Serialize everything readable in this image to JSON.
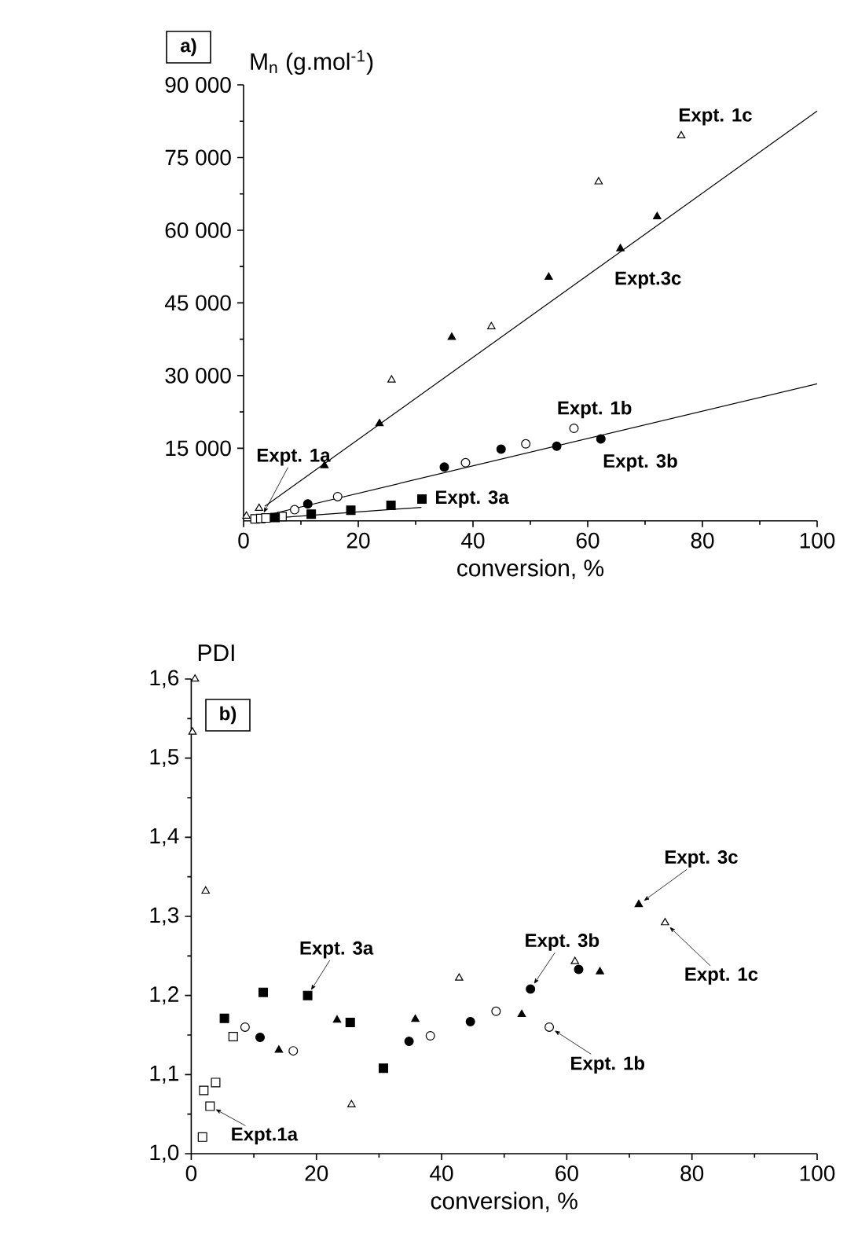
{
  "chart_data": [
    {
      "type": "scatter",
      "xlabel": "conversion, %",
      "ylabel": "M$_{n}$ (g.mol$^{-1}$)",
      "xlim": [
        0,
        100
      ],
      "ylim": [
        0,
        90000
      ],
      "xticks": [
        0,
        20,
        40,
        60,
        80,
        100
      ],
      "yticks": [
        {
          "value": 15000,
          "label": "15 000"
        },
        {
          "value": 30000,
          "label": "30 000"
        },
        {
          "value": 45000,
          "label": "45 000"
        },
        {
          "value": 60000,
          "label": "60 000"
        },
        {
          "value": 75000,
          "label": "75 000"
        },
        {
          "value": 90000,
          "label": "90 000"
        }
      ],
      "series": [
        {
          "marker": "square",
          "color": "#ffffff",
          "x": [
            2.0,
            3.0,
            3.9,
            6.7
          ],
          "values": [
            400,
            500,
            600,
            900
          ]
        },
        {
          "marker": "square",
          "color": "#000000",
          "x": [
            5.5,
            11.8,
            18.7,
            25.7,
            31.1
          ],
          "values": [
            700,
            1400,
            2200,
            3200,
            4500
          ]
        },
        {
          "marker": "circle",
          "color": "#ffffff",
          "x": [
            8.9,
            16.4,
            38.7,
            49.2,
            57.6
          ],
          "values": [
            2300,
            5000,
            12000,
            15900,
            19100
          ]
        },
        {
          "marker": "circle",
          "color": "#000000",
          "x": [
            11.2,
            35.0,
            44.9,
            54.6,
            62.3
          ],
          "values": [
            3500,
            11100,
            14800,
            15400,
            16900
          ]
        },
        {
          "marker": "triangle",
          "color": "#ffffff",
          "x": [
            0.5,
            2.7,
            25.8,
            43.2,
            61.9,
            76.3
          ],
          "values": [
            1000,
            2600,
            29100,
            40100,
            70000,
            79500
          ]
        },
        {
          "marker": "triangle",
          "color": "#000000",
          "x": [
            14.1,
            23.7,
            36.3,
            53.2,
            65.7,
            72.1
          ],
          "values": [
            11400,
            20100,
            37900,
            50300,
            56200,
            62800
          ]
        },
        {
          "type": "line",
          "color": "#000000",
          "x": [
            3,
            31
          ],
          "values": [
            400,
            2800
          ]
        },
        {
          "type": "line",
          "color": "#000000",
          "x": [
            3,
            100
          ],
          "values": [
            900,
            28300
          ]
        },
        {
          "type": "line",
          "color": "#000000",
          "x": [
            3.7,
            100
          ],
          "values": [
            3000,
            84600
          ]
        }
      ],
      "annotations": [
        "a)",
        {
          "text": "Expt. 1c",
          "x": 76.3,
          "y": 79500
        },
        {
          "text": "Expt.3c",
          "x": 65.7,
          "y": 56200
        },
        {
          "text": "Expt. 1b",
          "x": 57.6,
          "y": 19100
        },
        {
          "text": "Expt. 3b",
          "x": 62.3,
          "y": 16900
        },
        {
          "text": "Expt. 1a",
          "x": 3.0,
          "y": 500
        },
        {
          "text": "Expt. 3a",
          "x": 31.1,
          "y": 4500
        }
      ]
    },
    {
      "type": "scatter",
      "xlabel": "conversion, %",
      "ylabel": "PDI",
      "xlim": [
        0,
        100
      ],
      "ylim": [
        1.0,
        1.6
      ],
      "xticks": [
        0,
        20,
        40,
        60,
        80,
        100
      ],
      "yticks": [
        {
          "value": 1.0,
          "label": "1,0"
        },
        {
          "value": 1.1,
          "label": "1,1"
        },
        {
          "value": 1.2,
          "label": "1,2"
        },
        {
          "value": 1.3,
          "label": "1,3"
        },
        {
          "value": 1.4,
          "label": "1,4"
        },
        {
          "value": 1.5,
          "label": "1,5"
        },
        {
          "value": 1.6,
          "label": "1,6"
        }
      ],
      "series": [
        {
          "marker": "square",
          "color": "#ffffff",
          "x": [
            1.8,
            2.0,
            3.0,
            3.9,
            6.7
          ],
          "values": [
            1.021,
            1.08,
            1.06,
            1.09,
            1.148
          ]
        },
        {
          "marker": "square",
          "color": "#000000",
          "x": [
            5.3,
            11.5,
            18.6,
            25.4,
            30.7
          ],
          "values": [
            1.171,
            1.204,
            1.2,
            1.166,
            1.108
          ]
        },
        {
          "marker": "circle",
          "color": "#ffffff",
          "x": [
            8.6,
            16.3,
            38.2,
            48.7,
            57.2
          ],
          "values": [
            1.16,
            1.13,
            1.149,
            1.18,
            1.16
          ]
        },
        {
          "marker": "circle",
          "color": "#000000",
          "x": [
            11.0,
            34.8,
            44.6,
            54.2,
            61.9
          ],
          "values": [
            1.147,
            1.142,
            1.167,
            1.208,
            1.233
          ]
        },
        {
          "marker": "triangle",
          "color": "#ffffff",
          "x": [
            0.2,
            0.6,
            2.3,
            25.6,
            42.8,
            61.3,
            75.7
          ],
          "values": [
            1.533,
            1.6,
            1.332,
            1.062,
            1.222,
            1.243,
            1.292
          ]
        },
        {
          "marker": "triangle",
          "color": "#000000",
          "x": [
            14.0,
            23.3,
            35.8,
            52.8,
            65.3,
            71.5
          ],
          "values": [
            1.131,
            1.169,
            1.17,
            1.176,
            1.23,
            1.315
          ]
        }
      ],
      "annotations": [
        "b)",
        {
          "text": "Expt. 3c",
          "x": 71.5,
          "y": 1.315
        },
        {
          "text": "Expt. 1c",
          "x": 75.7,
          "y": 1.292
        },
        {
          "text": "Expt. 3b",
          "x": 54.2,
          "y": 1.208
        },
        {
          "text": "Expt. 1b",
          "x": 57.2,
          "y": 1.16
        },
        {
          "text": "Expt. 3a",
          "x": 18.6,
          "y": 1.2
        },
        {
          "text": "Expt.1a",
          "x": 3.0,
          "y": 1.06
        }
      ]
    }
  ]
}
